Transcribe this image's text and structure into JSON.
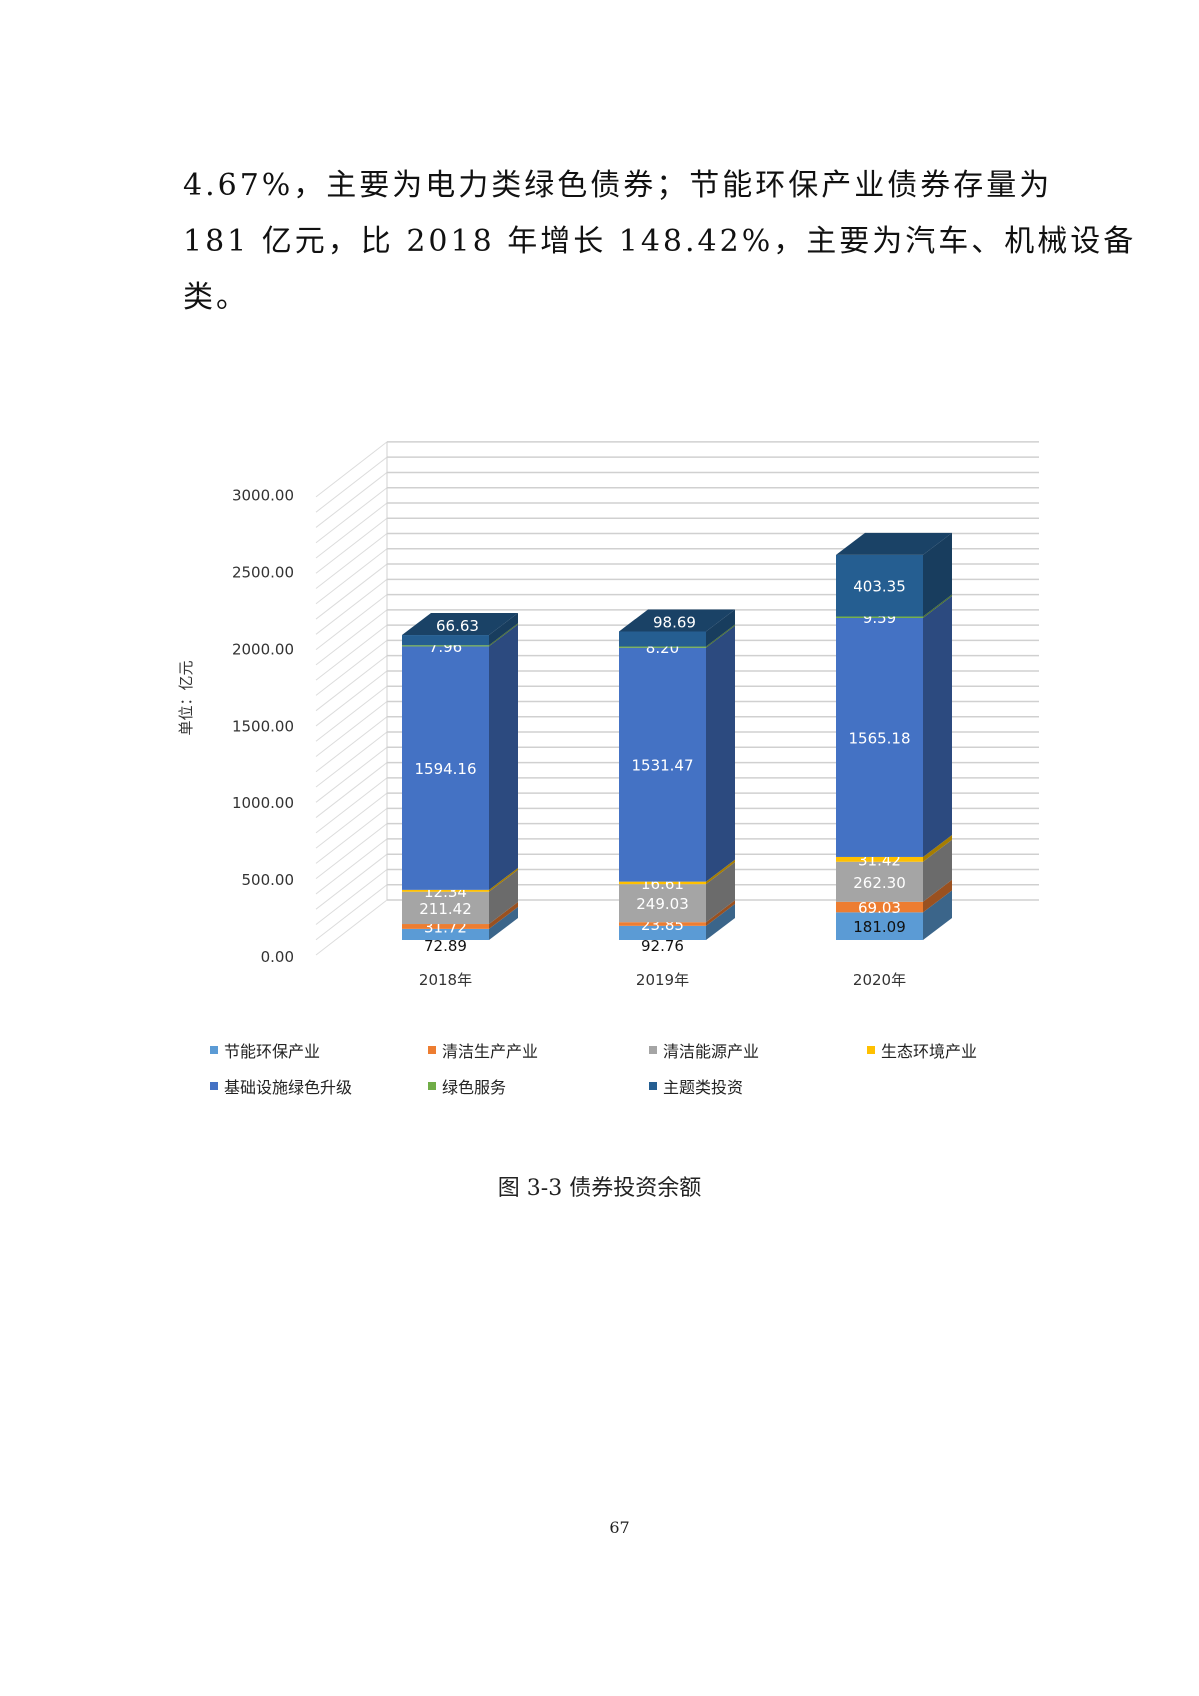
{
  "text": {
    "lines": [
      "4.67%，主要为电力类绿色债券；节能环保产业债券存量为",
      "181 亿元，比 2018 年增长 148.42%，主要为汽车、机械设备",
      "类。"
    ]
  },
  "chart_data": {
    "type": "bar",
    "stacked": true,
    "3d": true,
    "categories": [
      "2018年",
      "2019年",
      "2020年"
    ],
    "ylabel": "单位：亿元",
    "yticks": [
      "0.00",
      "500.00",
      "1000.00",
      "1500.00",
      "2000.00",
      "2500.00",
      "3000.00"
    ],
    "ylim": [
      0,
      3000
    ],
    "grid": true,
    "legend": "bottom",
    "series": [
      {
        "name": "节能环保产业",
        "color": "#5B9BD5",
        "values": [
          72.89,
          92.76,
          181.09
        ],
        "labels": [
          "72.89",
          "92.76",
          "181.09"
        ]
      },
      {
        "name": "清洁生产产业",
        "color": "#ED7D31",
        "values": [
          31.72,
          23.85,
          69.03
        ],
        "labels": [
          "31.72",
          "23.85",
          "69.03"
        ]
      },
      {
        "name": "清洁能源产业",
        "color": "#A5A5A5",
        "values": [
          211.42,
          249.03,
          262.3
        ],
        "labels": [
          "211.42",
          "249.03",
          "262.30"
        ]
      },
      {
        "name": "生态环境产业",
        "color": "#FFC000",
        "values": [
          12.34,
          16.61,
          31.42
        ],
        "labels": [
          "12.34",
          "16.61",
          "31.42"
        ]
      },
      {
        "name": "基础设施绿色升级",
        "color": "#4472C4",
        "values": [
          1594.16,
          1531.47,
          1565.18
        ],
        "labels": [
          "1594.16",
          "1531.47",
          "1565.18"
        ]
      },
      {
        "name": "绿色服务",
        "color": "#70AD47",
        "values": [
          7.96,
          8.2,
          9.59
        ],
        "labels": [
          "7.96",
          "8.20",
          "9.59"
        ]
      },
      {
        "name": "主题类投资",
        "color": "#255E91",
        "values": [
          66.63,
          98.69,
          403.35
        ],
        "labels": [
          "66.63",
          "98.69",
          "403.35"
        ]
      }
    ]
  },
  "caption": "图 3-3 债券投资余额",
  "page_number": "67"
}
